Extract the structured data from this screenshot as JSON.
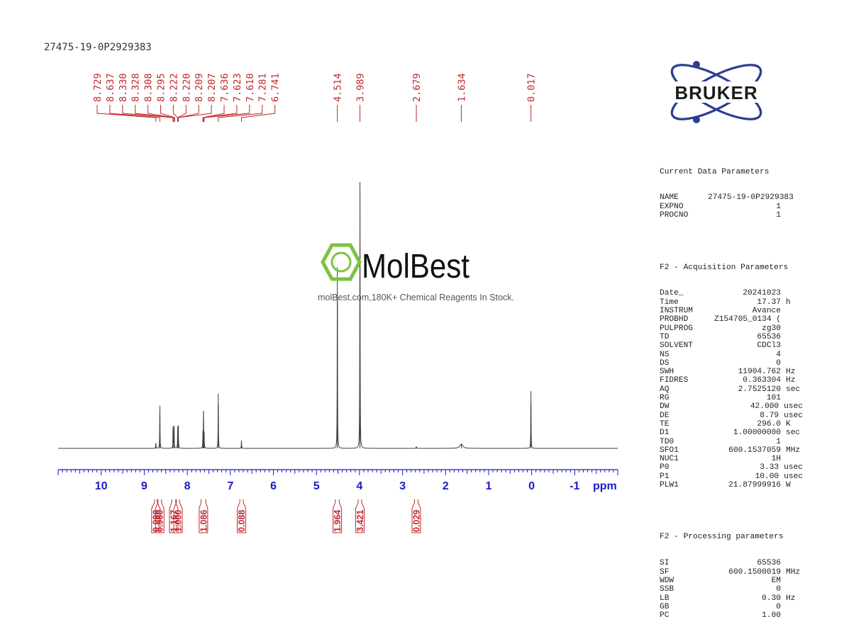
{
  "sample_name": "27475-19-0P2929383",
  "chart_data": {
    "type": "line",
    "title": "27475-19-0P2929383",
    "xlabel": "ppm",
    "xlim": [
      11.0,
      -2.0
    ],
    "x_ticks": [
      10,
      9,
      8,
      7,
      6,
      5,
      4,
      3,
      2,
      1,
      0,
      -1
    ],
    "x_tick_labels": [
      "10",
      "9",
      "8",
      "7",
      "6",
      "5",
      "4",
      "3",
      "2",
      "1",
      "0",
      "-1"
    ],
    "axis_unit_label": "ppm",
    "peak_labels": [
      "8.729",
      "8.637",
      "8.330",
      "8.328",
      "8.308",
      "8.295",
      "8.222",
      "8.220",
      "8.209",
      "8.207",
      "7.636",
      "7.623",
      "7.610",
      "7.281",
      "6.741",
      "4.514",
      "3.989",
      "2.679",
      "1.634",
      "0.017"
    ],
    "peak_label_groups": [
      {
        "labels": [
          "8.729",
          "8.637",
          "8.330",
          "8.328",
          "8.308",
          "8.295",
          "8.222",
          "8.220",
          "8.209",
          "8.207",
          "7.636",
          "7.623",
          "7.610",
          "7.281",
          "6.741"
        ],
        "peaks": [
          8.729,
          8.637,
          8.33,
          8.328,
          8.308,
          8.295,
          8.222,
          8.22,
          8.209,
          8.207,
          7.636,
          7.623,
          7.61,
          7.281,
          6.741
        ]
      },
      {
        "labels": [
          "4.514"
        ],
        "peaks": [
          4.514
        ]
      },
      {
        "labels": [
          "3.989"
        ],
        "peaks": [
          3.989
        ]
      },
      {
        "labels": [
          "2.679"
        ],
        "peaks": [
          2.679
        ]
      },
      {
        "labels": [
          "1.634"
        ],
        "peaks": [
          1.634
        ]
      },
      {
        "labels": [
          "0.017"
        ],
        "peaks": [
          0.017
        ]
      }
    ],
    "peaks": [
      {
        "ppm": 8.729,
        "height": 0.02,
        "width": 0.004
      },
      {
        "ppm": 8.637,
        "height": 0.16,
        "width": 0.004
      },
      {
        "ppm": 8.33,
        "height": 0.083,
        "width": 0.004
      },
      {
        "ppm": 8.308,
        "height": 0.085,
        "width": 0.004
      },
      {
        "ppm": 8.222,
        "height": 0.078,
        "width": 0.004
      },
      {
        "ppm": 8.209,
        "height": 0.08,
        "width": 0.004
      },
      {
        "ppm": 7.636,
        "height": 0.054,
        "width": 0.004
      },
      {
        "ppm": 7.623,
        "height": 0.14,
        "width": 0.004
      },
      {
        "ppm": 7.61,
        "height": 0.054,
        "width": 0.004
      },
      {
        "ppm": 7.281,
        "height": 0.205,
        "width": 0.004
      },
      {
        "ppm": 6.741,
        "height": 0.03,
        "width": 0.004
      },
      {
        "ppm": 4.514,
        "height": 0.68,
        "width": 0.004
      },
      {
        "ppm": 3.989,
        "height": 1.0,
        "width": 0.004
      },
      {
        "ppm": 2.679,
        "height": 0.006,
        "width": 0.006
      },
      {
        "ppm": 1.634,
        "height": 0.016,
        "width": 0.04
      },
      {
        "ppm": 0.017,
        "height": 0.215,
        "width": 0.004
      }
    ],
    "integrals": [
      {
        "label": "0.088",
        "from": 8.76,
        "to": 8.7
      },
      {
        "label": "0.960",
        "from": 8.68,
        "to": 8.6
      },
      {
        "label": "1.167",
        "from": 8.36,
        "to": 8.27
      },
      {
        "label": "1.000",
        "from": 8.25,
        "to": 8.18
      },
      {
        "label": "1.086",
        "from": 7.68,
        "to": 7.57
      },
      {
        "label": "0.088",
        "from": 6.78,
        "to": 6.7
      },
      {
        "label": "1.964",
        "from": 4.56,
        "to": 4.47
      },
      {
        "label": "3.421",
        "from": 4.03,
        "to": 3.95
      },
      {
        "label": "0.029",
        "from": 2.72,
        "to": 2.64
      }
    ]
  },
  "watermark": {
    "brand": "MolBest",
    "tagline": "molBest.com,180K+ Chemical Reagents In Stock."
  },
  "logo": {
    "text": "BRUKER"
  },
  "parameters": {
    "current": {
      "title": "Current Data Parameters",
      "rows": [
        {
          "k": "NAME",
          "v": "27475-19-0P2929383",
          "u": ""
        },
        {
          "k": "EXPNO",
          "v": "1",
          "u": ""
        },
        {
          "k": "PROCNO",
          "v": "1",
          "u": ""
        }
      ]
    },
    "acquisition": {
      "title": "F2 - Acquisition Parameters",
      "rows": [
        {
          "k": "Date_",
          "v": "20241023",
          "u": ""
        },
        {
          "k": "Time",
          "v": "17.37",
          "u": "h"
        },
        {
          "k": "INSTRUM",
          "v": "Avance",
          "u": ""
        },
        {
          "k": "PROBHD",
          "v": "Z154705_0134 (",
          "u": ""
        },
        {
          "k": "PULPROG",
          "v": "zg30",
          "u": ""
        },
        {
          "k": "TD",
          "v": "65536",
          "u": ""
        },
        {
          "k": "SOLVENT",
          "v": "CDCl3",
          "u": ""
        },
        {
          "k": "NS",
          "v": "4",
          "u": ""
        },
        {
          "k": "DS",
          "v": "0",
          "u": ""
        },
        {
          "k": "SWH",
          "v": "11904.762",
          "u": "Hz"
        },
        {
          "k": "FIDRES",
          "v": "0.363304",
          "u": "Hz"
        },
        {
          "k": "AQ",
          "v": "2.7525120",
          "u": "sec"
        },
        {
          "k": "RG",
          "v": "101",
          "u": ""
        },
        {
          "k": "DW",
          "v": "42.000",
          "u": "usec"
        },
        {
          "k": "DE",
          "v": "8.79",
          "u": "usec"
        },
        {
          "k": "TE",
          "v": "296.0",
          "u": "K"
        },
        {
          "k": "D1",
          "v": "1.00000000",
          "u": "sec"
        },
        {
          "k": "TD0",
          "v": "1",
          "u": ""
        },
        {
          "k": "SFO1",
          "v": "600.1537059",
          "u": "MHz"
        },
        {
          "k": "NUC1",
          "v": "1H",
          "u": ""
        },
        {
          "k": "P0",
          "v": "3.33",
          "u": "usec"
        },
        {
          "k": "P1",
          "v": "10.00",
          "u": "usec"
        },
        {
          "k": "PLW1",
          "v": "21.87999916",
          "u": "W"
        }
      ]
    },
    "processing": {
      "title": "F2 - Processing parameters",
      "rows": [
        {
          "k": "SI",
          "v": "65536",
          "u": ""
        },
        {
          "k": "SF",
          "v": "600.1500019",
          "u": "MHz"
        },
        {
          "k": "WDW",
          "v": "EM",
          "u": ""
        },
        {
          "k": "SSB",
          "v": "0",
          "u": ""
        },
        {
          "k": "LB",
          "v": "0.30",
          "u": "Hz"
        },
        {
          "k": "GB",
          "v": "0",
          "u": ""
        },
        {
          "k": "PC",
          "v": "1.00",
          "u": ""
        }
      ]
    }
  },
  "colors": {
    "spectrum": "#3c3c3c",
    "peak_label": "#c0282d",
    "axis": "#1a1ac8",
    "integral": "#c0282d",
    "logo": "#2b3e93",
    "watermark_green": "#7cc242"
  }
}
